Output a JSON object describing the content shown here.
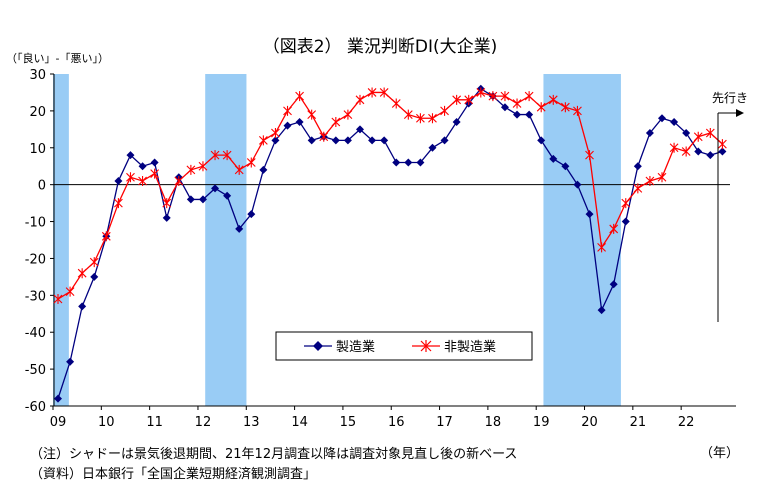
{
  "chart_data": {
    "type": "line",
    "title": "（図表2） 業況判断DI(大企業)",
    "ylabel": "（「良い」-「悪い」）",
    "xlabel": "（年）",
    "ylim": [
      -60,
      30
    ],
    "yticks": [
      30,
      20,
      10,
      0,
      -10,
      -20,
      -30,
      -40,
      -50,
      -60
    ],
    "xtick_labels": [
      "09",
      "10",
      "11",
      "12",
      "13",
      "14",
      "15",
      "16",
      "17",
      "18",
      "19",
      "20",
      "21",
      "22"
    ],
    "x_start": "2009Q1",
    "frequency": "quarterly",
    "forecast_label": "先行き",
    "shaded_periods": [
      [
        0,
        0.9
      ],
      [
        12.6,
        15.6
      ],
      [
        40.6,
        46.6
      ]
    ],
    "series": [
      {
        "name": "製造業",
        "color": "#000080",
        "marker": "diamond",
        "values": [
          -58,
          -48,
          -33,
          -25,
          -14,
          1,
          8,
          5,
          6,
          -9,
          2,
          -4,
          -4,
          -1,
          -3,
          -12,
          -8,
          4,
          12,
          16,
          17,
          12,
          13,
          12,
          12,
          15,
          12,
          12,
          6,
          6,
          6,
          10,
          12,
          17,
          22,
          26,
          24,
          21,
          19,
          19,
          12,
          7,
          5,
          0,
          -8,
          -34,
          -27,
          -10,
          5,
          14,
          18,
          17,
          14,
          9,
          8,
          9
        ]
      },
      {
        "name": "非製造業",
        "color": "#ff0000",
        "marker": "asterisk",
        "values": [
          -31,
          -29,
          -24,
          -21,
          -14,
          -5,
          2,
          1,
          3,
          -5,
          1,
          4,
          5,
          8,
          8,
          4,
          6,
          12,
          14,
          20,
          24,
          19,
          13,
          17,
          19,
          23,
          25,
          25,
          22,
          19,
          18,
          18,
          20,
          23,
          23,
          25,
          24,
          24,
          22,
          24,
          21,
          23,
          21,
          20,
          8,
          -17,
          -12,
          -5,
          -1,
          1,
          2,
          10,
          9,
          13,
          14,
          11
        ]
      }
    ]
  },
  "notes": [
    "（注）シャドーは景気後退期間、21年12月調査以降は調査対象見直し後の新ベース",
    "（資料）日本銀行「全国企業短期経済観測調査」"
  ]
}
